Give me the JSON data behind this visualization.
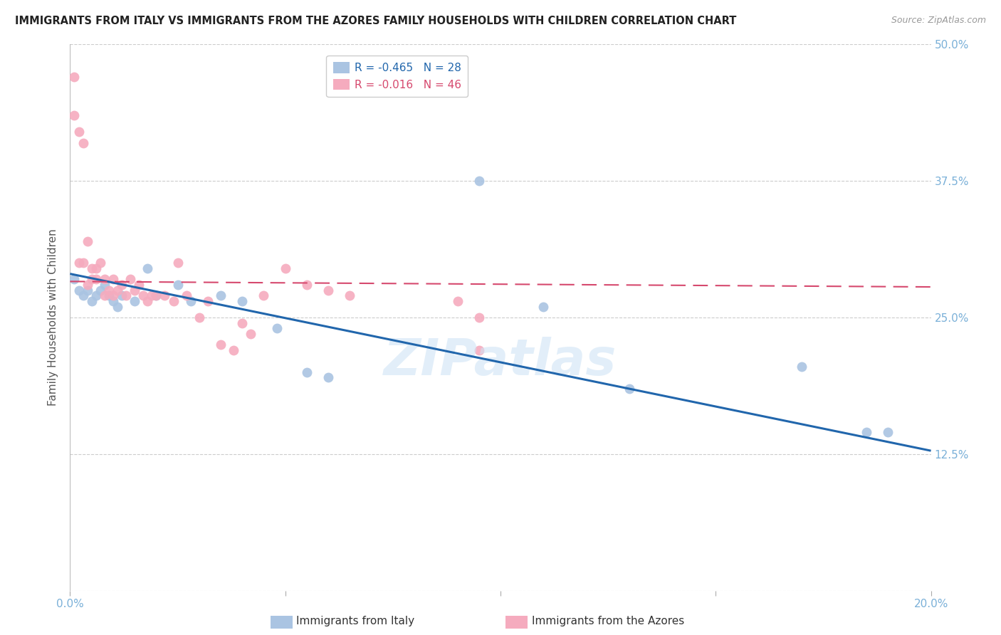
{
  "title": "IMMIGRANTS FROM ITALY VS IMMIGRANTS FROM THE AZORES FAMILY HOUSEHOLDS WITH CHILDREN CORRELATION CHART",
  "source": "Source: ZipAtlas.com",
  "ylabel": "Family Households with Children",
  "xlim": [
    0.0,
    0.2
  ],
  "ylim": [
    0.0,
    0.5
  ],
  "yticks": [
    0.0,
    0.125,
    0.25,
    0.375,
    0.5
  ],
  "ytick_labels": [
    "",
    "12.5%",
    "25.0%",
    "37.5%",
    "50.0%"
  ],
  "xticks": [
    0.0,
    0.05,
    0.1,
    0.15,
    0.2
  ],
  "xtick_labels": [
    "0.0%",
    "",
    "",
    "",
    "20.0%"
  ],
  "italy_R": -0.465,
  "italy_N": 28,
  "azores_R": -0.016,
  "azores_N": 46,
  "italy_color": "#aac4e2",
  "azores_color": "#f5abbe",
  "italy_line_color": "#2166ac",
  "azores_line_color": "#d6496e",
  "background_color": "#ffffff",
  "grid_color": "#cccccc",
  "right_axis_color": "#7ab0d8",
  "italy_scatter_x": [
    0.001,
    0.002,
    0.003,
    0.004,
    0.005,
    0.006,
    0.007,
    0.008,
    0.009,
    0.01,
    0.011,
    0.012,
    0.015,
    0.018,
    0.02,
    0.025,
    0.028,
    0.035,
    0.04,
    0.048,
    0.055,
    0.06,
    0.095,
    0.11,
    0.13,
    0.17,
    0.185,
    0.19
  ],
  "italy_scatter_y": [
    0.285,
    0.275,
    0.27,
    0.275,
    0.265,
    0.27,
    0.275,
    0.28,
    0.27,
    0.265,
    0.26,
    0.27,
    0.265,
    0.295,
    0.27,
    0.28,
    0.265,
    0.27,
    0.265,
    0.24,
    0.2,
    0.195,
    0.375,
    0.26,
    0.185,
    0.205,
    0.145,
    0.145
  ],
  "azores_scatter_x": [
    0.001,
    0.001,
    0.002,
    0.002,
    0.003,
    0.003,
    0.004,
    0.004,
    0.005,
    0.005,
    0.006,
    0.006,
    0.007,
    0.008,
    0.008,
    0.009,
    0.01,
    0.01,
    0.011,
    0.012,
    0.013,
    0.014,
    0.015,
    0.016,
    0.017,
    0.018,
    0.019,
    0.02,
    0.022,
    0.024,
    0.025,
    0.027,
    0.03,
    0.032,
    0.035,
    0.038,
    0.04,
    0.042,
    0.045,
    0.05,
    0.055,
    0.06,
    0.065,
    0.09,
    0.095,
    0.095
  ],
  "azores_scatter_y": [
    0.47,
    0.435,
    0.42,
    0.3,
    0.41,
    0.3,
    0.32,
    0.28,
    0.295,
    0.285,
    0.295,
    0.285,
    0.3,
    0.285,
    0.27,
    0.275,
    0.285,
    0.27,
    0.275,
    0.28,
    0.27,
    0.285,
    0.275,
    0.28,
    0.27,
    0.265,
    0.27,
    0.27,
    0.27,
    0.265,
    0.3,
    0.27,
    0.25,
    0.265,
    0.225,
    0.22,
    0.245,
    0.235,
    0.27,
    0.295,
    0.28,
    0.275,
    0.27,
    0.265,
    0.25,
    0.22
  ],
  "italy_trendline_x": [
    0.0,
    0.2
  ],
  "italy_trendline_y": [
    0.29,
    0.128
  ],
  "azores_trendline_x": [
    0.0,
    0.2
  ],
  "azores_trendline_y": [
    0.283,
    0.278
  ],
  "figsize": [
    14.06,
    8.92
  ],
  "dpi": 100,
  "legend_italy_text": "R = -0.465   N = 28",
  "legend_azores_text": "R = -0.016   N = 46",
  "bottom_legend_italy": "Immigrants from Italy",
  "bottom_legend_azores": "Immigrants from the Azores"
}
